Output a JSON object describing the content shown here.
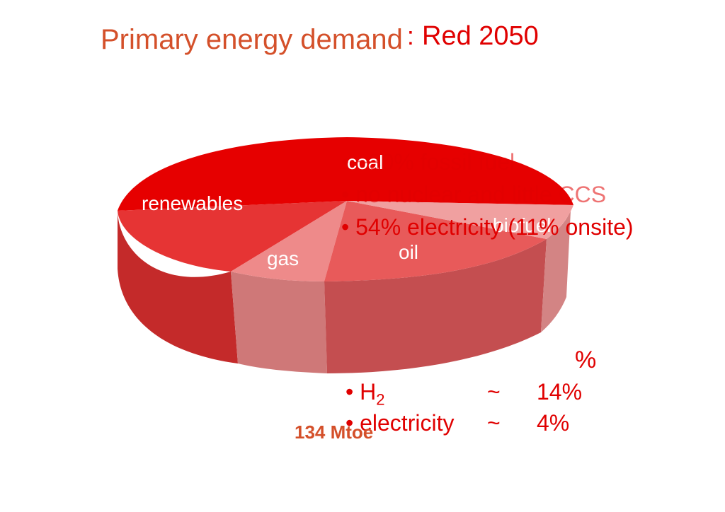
{
  "title": {
    "main": "Primary energy demand",
    "sep": ":",
    "rest": "Red 2050"
  },
  "chart_data": {
    "type": "pie",
    "style": "3d",
    "slices": [
      {
        "label": "coal",
        "value": 45,
        "color": "#e60000"
      },
      {
        "label": "biofuel",
        "value": 2,
        "color": "#f0a0a0"
      },
      {
        "label": "oil",
        "value": 30,
        "color": "#e85a5a"
      },
      {
        "label": "gas",
        "value": 8,
        "color": "#ee8a8a"
      },
      {
        "label": "renewables",
        "value": 15,
        "color": "#e63434"
      }
    ],
    "total": "134 Mtoe"
  },
  "bullets": [
    "• ~30% fossil fuel",
    "• no nuclear and little CCS",
    "• 54% electricity (11% onsite)"
  ],
  "table": {
    "header": "%",
    "rows": [
      {
        "name": "• H",
        "sub": "2",
        "tilde": "~",
        "value": "14%"
      },
      {
        "name": "• electricity",
        "sub": "",
        "tilde": "~",
        "value": "4%"
      }
    ]
  }
}
